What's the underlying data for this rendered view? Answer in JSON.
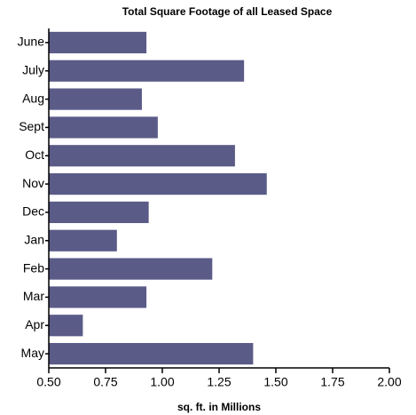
{
  "chart_data": {
    "type": "hbar",
    "title": "Total Square Footage of all Leased Space",
    "x_label": "sq. ft. in Millions",
    "categories": [
      "June",
      "July",
      "Aug",
      "Sept",
      "Oct",
      "Nov",
      "Dec",
      "Jan",
      "Feb",
      "Mar",
      "Apr",
      "May"
    ],
    "values": [
      0.93,
      1.36,
      0.91,
      0.98,
      1.32,
      1.46,
      0.94,
      0.8,
      1.22,
      0.93,
      0.65,
      1.4
    ],
    "color": "#5b5b88",
    "xlim": [
      0.5,
      2.0
    ],
    "xticks": [
      {
        "value": 0.5,
        "label": "0.50"
      },
      {
        "value": 0.75,
        "label": "0.75"
      },
      {
        "value": 1.0,
        "label": "1.00"
      },
      {
        "value": 1.25,
        "label": "1.25"
      },
      {
        "value": 1.5,
        "label": "1.50"
      },
      {
        "value": 1.75,
        "label": "1.75"
      },
      {
        "value": 2.0,
        "label": "2.00"
      }
    ],
    "grid": false
  }
}
